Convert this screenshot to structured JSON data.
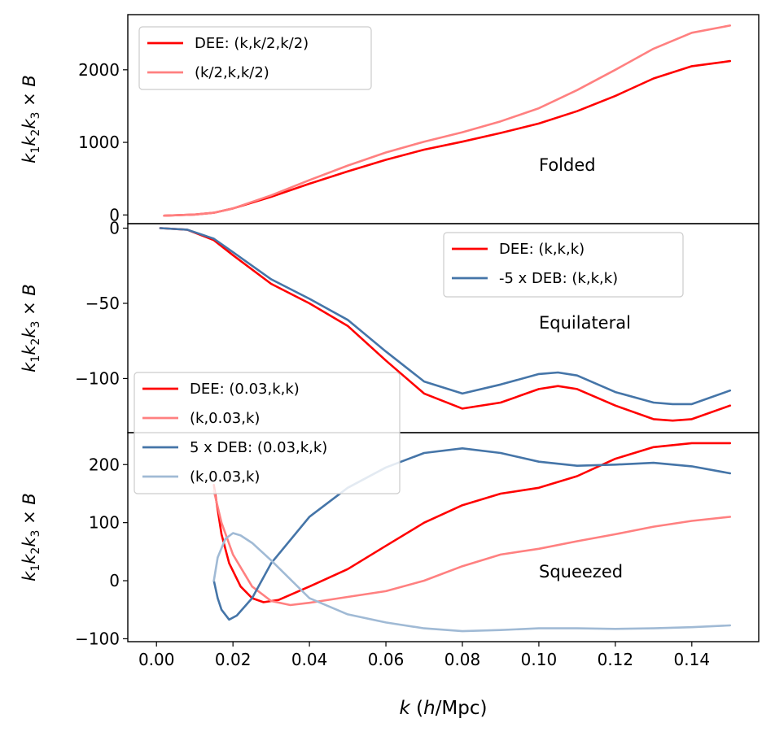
{
  "chart_data": [
    {
      "type": "line",
      "panel": "top",
      "annotation": "Folded",
      "ylabel": "k1k2k3 × B",
      "ylim": [
        -120,
        2760
      ],
      "yticks": [
        0,
        1000,
        2000
      ],
      "xlim": [
        -0.0075,
        0.1575
      ],
      "legend_position": "upper-left",
      "series": [
        {
          "name": "DEE: (k,k/2,k/2)",
          "color": "#ff0000",
          "points": [
            [
              0.002,
              -10
            ],
            [
              0.01,
              5
            ],
            [
              0.015,
              30
            ],
            [
              0.02,
              90
            ],
            [
              0.03,
              250
            ],
            [
              0.04,
              430
            ],
            [
              0.05,
              600
            ],
            [
              0.06,
              760
            ],
            [
              0.07,
              900
            ],
            [
              0.08,
              1010
            ],
            [
              0.09,
              1130
            ],
            [
              0.1,
              1260
            ],
            [
              0.11,
              1430
            ],
            [
              0.12,
              1640
            ],
            [
              0.13,
              1880
            ],
            [
              0.14,
              2050
            ],
            [
              0.15,
              2120
            ]
          ]
        },
        {
          "name": "(k/2,k,k/2)",
          "color": "#ff8080",
          "points": [
            [
              0.002,
              -10
            ],
            [
              0.01,
              5
            ],
            [
              0.015,
              30
            ],
            [
              0.02,
              90
            ],
            [
              0.03,
              270
            ],
            [
              0.04,
              480
            ],
            [
              0.05,
              680
            ],
            [
              0.06,
              860
            ],
            [
              0.07,
              1010
            ],
            [
              0.08,
              1140
            ],
            [
              0.09,
              1290
            ],
            [
              0.1,
              1470
            ],
            [
              0.11,
              1720
            ],
            [
              0.12,
              2000
            ],
            [
              0.13,
              2290
            ],
            [
              0.14,
              2510
            ],
            [
              0.15,
              2610
            ]
          ]
        }
      ]
    },
    {
      "type": "line",
      "panel": "middle",
      "annotation": "Equilateral",
      "ylabel": "k1k2k3 × B",
      "ylim": [
        -136,
        3
      ],
      "yticks": [
        0,
        -50,
        -100
      ],
      "xlim": [
        -0.0075,
        0.1575
      ],
      "legend_position": "upper-right",
      "series": [
        {
          "name": "DEE: (k,k,k)",
          "color": "#ff0000",
          "points": [
            [
              0.001,
              0
            ],
            [
              0.008,
              -1
            ],
            [
              0.015,
              -8
            ],
            [
              0.02,
              -18
            ],
            [
              0.03,
              -37
            ],
            [
              0.04,
              -50
            ],
            [
              0.05,
              -65
            ],
            [
              0.06,
              -88
            ],
            [
              0.07,
              -110
            ],
            [
              0.08,
              -120
            ],
            [
              0.09,
              -116
            ],
            [
              0.1,
              -107
            ],
            [
              0.105,
              -105
            ],
            [
              0.11,
              -107
            ],
            [
              0.12,
              -118
            ],
            [
              0.13,
              -127
            ],
            [
              0.135,
              -128
            ],
            [
              0.14,
              -127
            ],
            [
              0.15,
              -118
            ]
          ]
        },
        {
          "name": "-5 x DEB: (k,k,k)",
          "color": "#4575a8",
          "points": [
            [
              0.001,
              0
            ],
            [
              0.008,
              -1
            ],
            [
              0.015,
              -7
            ],
            [
              0.02,
              -16
            ],
            [
              0.03,
              -34
            ],
            [
              0.04,
              -47
            ],
            [
              0.05,
              -61
            ],
            [
              0.06,
              -82
            ],
            [
              0.07,
              -102
            ],
            [
              0.08,
              -110
            ],
            [
              0.09,
              -104
            ],
            [
              0.1,
              -97
            ],
            [
              0.105,
              -96
            ],
            [
              0.11,
              -98
            ],
            [
              0.12,
              -109
            ],
            [
              0.13,
              -116
            ],
            [
              0.135,
              -117
            ],
            [
              0.14,
              -117
            ],
            [
              0.15,
              -108
            ]
          ]
        }
      ]
    },
    {
      "type": "line",
      "panel": "bottom",
      "annotation": "Squeezed",
      "ylabel": "k1k2k3 × B",
      "ylim": [
        -105,
        255
      ],
      "yticks": [
        -100,
        0,
        100,
        200
      ],
      "xlim": [
        -0.0075,
        0.1575
      ],
      "xticks": [
        0.0,
        0.02,
        0.04,
        0.06,
        0.08,
        0.1,
        0.12,
        0.14
      ],
      "xlabel": "k (h/Mpc)",
      "legend_position": "upper-left",
      "series": [
        {
          "name": "DEE: (0.03,k,k)",
          "color": "#ff0000",
          "points": [
            [
              0.015,
              165
            ],
            [
              0.017,
              80
            ],
            [
              0.019,
              30
            ],
            [
              0.022,
              -10
            ],
            [
              0.025,
              -30
            ],
            [
              0.028,
              -37
            ],
            [
              0.032,
              -33
            ],
            [
              0.04,
              -10
            ],
            [
              0.05,
              20
            ],
            [
              0.06,
              60
            ],
            [
              0.07,
              100
            ],
            [
              0.08,
              130
            ],
            [
              0.09,
              150
            ],
            [
              0.1,
              160
            ],
            [
              0.11,
              180
            ],
            [
              0.12,
              210
            ],
            [
              0.13,
              230
            ],
            [
              0.14,
              237
            ],
            [
              0.15,
              237
            ]
          ]
        },
        {
          "name": "(k,0.03,k)",
          "color": "#ff8080",
          "points": [
            [
              0.015,
              155
            ],
            [
              0.017,
              100
            ],
            [
              0.02,
              45
            ],
            [
              0.025,
              -10
            ],
            [
              0.03,
              -35
            ],
            [
              0.035,
              -42
            ],
            [
              0.04,
              -38
            ],
            [
              0.05,
              -28
            ],
            [
              0.06,
              -18
            ],
            [
              0.07,
              0
            ],
            [
              0.08,
              25
            ],
            [
              0.09,
              45
            ],
            [
              0.1,
              55
            ],
            [
              0.11,
              68
            ],
            [
              0.12,
              80
            ],
            [
              0.13,
              93
            ],
            [
              0.14,
              103
            ],
            [
              0.15,
              110
            ]
          ]
        },
        {
          "name": "5 x DEB: (0.03,k,k)",
          "color": "#4575a8",
          "points": [
            [
              0.015,
              0
            ],
            [
              0.016,
              -30
            ],
            [
              0.017,
              -50
            ],
            [
              0.019,
              -67
            ],
            [
              0.021,
              -60
            ],
            [
              0.025,
              -30
            ],
            [
              0.03,
              30
            ],
            [
              0.04,
              110
            ],
            [
              0.05,
              160
            ],
            [
              0.06,
              195
            ],
            [
              0.07,
              220
            ],
            [
              0.08,
              228
            ],
            [
              0.09,
              220
            ],
            [
              0.1,
              205
            ],
            [
              0.11,
              198
            ],
            [
              0.12,
              200
            ],
            [
              0.13,
              203
            ],
            [
              0.14,
              197
            ],
            [
              0.15,
              185
            ]
          ]
        },
        {
          "name": "(k,0.03,k)",
          "color": "#a0bad5",
          "points": [
            [
              0.015,
              0
            ],
            [
              0.016,
              40
            ],
            [
              0.018,
              72
            ],
            [
              0.02,
              82
            ],
            [
              0.022,
              78
            ],
            [
              0.025,
              65
            ],
            [
              0.03,
              35
            ],
            [
              0.04,
              -30
            ],
            [
              0.05,
              -58
            ],
            [
              0.06,
              -72
            ],
            [
              0.07,
              -82
            ],
            [
              0.08,
              -87
            ],
            [
              0.09,
              -85
            ],
            [
              0.1,
              -82
            ],
            [
              0.11,
              -82
            ],
            [
              0.12,
              -83
            ],
            [
              0.13,
              -82
            ],
            [
              0.14,
              -80
            ],
            [
              0.15,
              -77
            ]
          ]
        }
      ]
    }
  ]
}
